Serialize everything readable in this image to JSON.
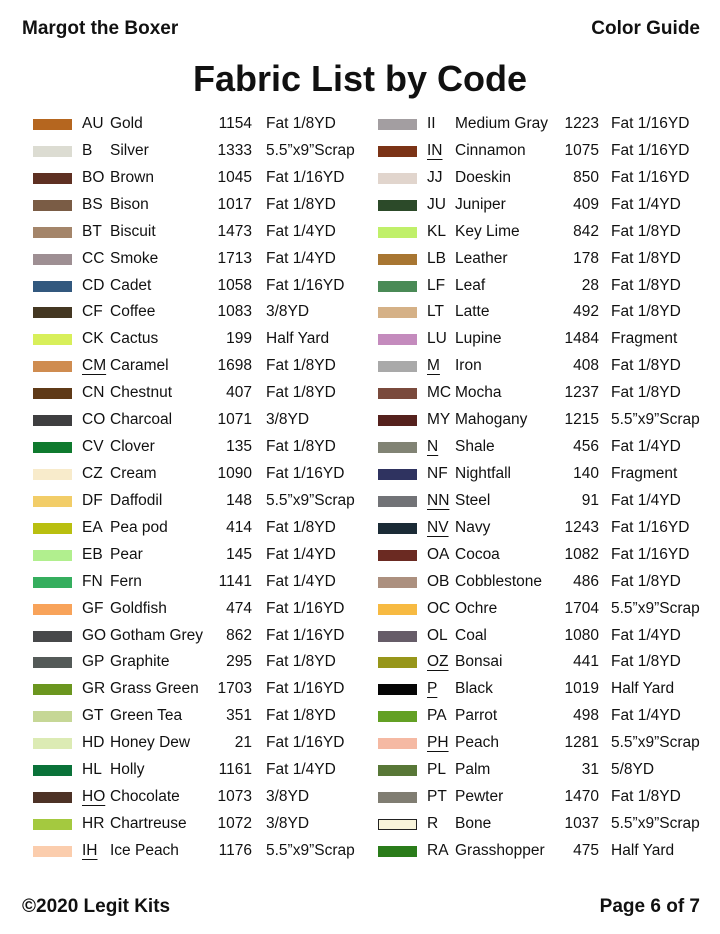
{
  "header": {
    "left": "Margot the Boxer",
    "right": "Color Guide"
  },
  "title": "Fabric List by Code",
  "footer": {
    "left": "©2020 Legit Kits",
    "right": "Page 6 of 7"
  },
  "columns": [
    [
      {
        "code": "AU",
        "name": "Gold",
        "number": "1154",
        "size": "Fat 1/8YD",
        "color": "#b5661f",
        "underline": false
      },
      {
        "code": "B",
        "name": "Silver",
        "number": "1333",
        "size": "5.5”x9”Scrap",
        "color": "#dcdcd2",
        "underline": false
      },
      {
        "code": "BO",
        "name": "Brown",
        "number": "1045",
        "size": "Fat 1/16YD",
        "color": "#5e3022",
        "underline": false
      },
      {
        "code": "BS",
        "name": "Bison",
        "number": "1017",
        "size": "Fat 1/8YD",
        "color": "#7a5c45",
        "underline": false
      },
      {
        "code": "BT",
        "name": "Biscuit",
        "number": "1473",
        "size": "Fat 1/4YD",
        "color": "#a4856a",
        "underline": false
      },
      {
        "code": "CC",
        "name": "Smoke",
        "number": "1713",
        "size": "Fat 1/4YD",
        "color": "#9e8f93",
        "underline": false
      },
      {
        "code": "CD",
        "name": "Cadet",
        "number": "1058",
        "size": "Fat 1/16YD",
        "color": "#32587e",
        "underline": false
      },
      {
        "code": "CF",
        "name": "Coffee",
        "number": "1083",
        "size": "3/8YD",
        "color": "#443722",
        "underline": false
      },
      {
        "code": "CK",
        "name": "Cactus",
        "number": "199",
        "size": "Half Yard",
        "color": "#d8ef5a",
        "underline": false
      },
      {
        "code": "CM",
        "name": "Caramel",
        "number": "1698",
        "size": "Fat 1/8YD",
        "color": "#cf8c50",
        "underline": true
      },
      {
        "code": "CN",
        "name": "Chestnut",
        "number": "407",
        "size": "Fat 1/8YD",
        "color": "#5f3a18",
        "underline": false
      },
      {
        "code": "CO",
        "name": "Charcoal",
        "number": "1071",
        "size": "3/8YD",
        "color": "#3e3e40",
        "underline": false
      },
      {
        "code": "CV",
        "name": "Clover",
        "number": "135",
        "size": "Fat 1/8YD",
        "color": "#0f7a2e",
        "underline": false
      },
      {
        "code": "CZ",
        "name": "Cream",
        "number": "1090",
        "size": "Fat 1/16YD",
        "color": "#f8ebcb",
        "underline": false
      },
      {
        "code": "DF",
        "name": "Daffodil",
        "number": "148",
        "size": "5.5”x9”Scrap",
        "color": "#f2cd68",
        "underline": false
      },
      {
        "code": "EA",
        "name": "Pea pod",
        "number": "414",
        "size": "Fat 1/8YD",
        "color": "#b9bf10",
        "underline": false
      },
      {
        "code": "EB",
        "name": "Pear",
        "number": "145",
        "size": "Fat 1/4YD",
        "color": "#b1ef8e",
        "underline": false
      },
      {
        "code": "FN",
        "name": "Fern",
        "number": "1141",
        "size": "Fat 1/4YD",
        "color": "#35ae5e",
        "underline": false
      },
      {
        "code": "GF",
        "name": "Goldfish",
        "number": "474",
        "size": "Fat 1/16YD",
        "color": "#f8a35a",
        "underline": false
      },
      {
        "code": "GO",
        "name": "Gotham Grey",
        "number": "862",
        "size": "Fat 1/16YD",
        "color": "#47484a",
        "underline": false
      },
      {
        "code": "GP",
        "name": "Graphite",
        "number": "295",
        "size": "Fat 1/8YD",
        "color": "#545a58",
        "underline": false
      },
      {
        "code": "GR",
        "name": "Grass Green",
        "number": "1703",
        "size": "Fat 1/16YD",
        "color": "#6b961f",
        "underline": false
      },
      {
        "code": "GT",
        "name": "Green Tea",
        "number": "351",
        "size": "Fat 1/8YD",
        "color": "#c6d796",
        "underline": false
      },
      {
        "code": "HD",
        "name": "Honey Dew",
        "number": "21",
        "size": "Fat 1/16YD",
        "color": "#dcebb4",
        "underline": false
      },
      {
        "code": "HL",
        "name": "Holly",
        "number": "1161",
        "size": "Fat 1/4YD",
        "color": "#0a7239",
        "underline": false
      },
      {
        "code": "HO",
        "name": "Chocolate",
        "number": "1073",
        "size": "3/8YD",
        "color": "#4d3226",
        "underline": true
      },
      {
        "code": "HR",
        "name": "Chartreuse",
        "number": "1072",
        "size": "3/8YD",
        "color": "#a4c93f",
        "underline": false
      },
      {
        "code": "IH",
        "name": "Ice Peach",
        "number": "1176",
        "size": "5.5”x9”Scrap",
        "color": "#fbcdad",
        "underline": true
      }
    ],
    [
      {
        "code": "II",
        "name": "Medium Gray",
        "number": "1223",
        "size": "Fat 1/16YD",
        "color": "#a39ea1",
        "underline": false
      },
      {
        "code": "IN",
        "name": "Cinnamon",
        "number": "1075",
        "size": "Fat 1/16YD",
        "color": "#7b3316",
        "underline": true
      },
      {
        "code": "JJ",
        "name": "Doeskin",
        "number": "850",
        "size": "Fat 1/16YD",
        "color": "#e1d5cd",
        "underline": false
      },
      {
        "code": "JU",
        "name": "Juniper",
        "number": "409",
        "size": "Fat 1/4YD",
        "color": "#2c4a29",
        "underline": false
      },
      {
        "code": "KL",
        "name": "Key Lime",
        "number": "842",
        "size": "Fat 1/8YD",
        "color": "#c0f06a",
        "underline": false
      },
      {
        "code": "LB",
        "name": "Leather",
        "number": "178",
        "size": "Fat 1/8YD",
        "color": "#a87632",
        "underline": false
      },
      {
        "code": "LF",
        "name": "Leaf",
        "number": "28",
        "size": "Fat 1/8YD",
        "color": "#4a8a56",
        "underline": false
      },
      {
        "code": "LT",
        "name": "Latte",
        "number": "492",
        "size": "Fat 1/8YD",
        "color": "#d5b187",
        "underline": false
      },
      {
        "code": "LU",
        "name": "Lupine",
        "number": "1484",
        "size": "Fragment",
        "color": "#c48bbd",
        "underline": false
      },
      {
        "code": "M",
        "name": "Iron",
        "number": "408",
        "size": "Fat 1/8YD",
        "color": "#a9a9a9",
        "underline": true
      },
      {
        "code": "MC",
        "name": "Mocha",
        "number": "1237",
        "size": "Fat 1/8YD",
        "color": "#7a4a3c",
        "underline": false
      },
      {
        "code": "MY",
        "name": "Mahogany",
        "number": "1215",
        "size": "5.5”x9”Scrap",
        "color": "#55211d",
        "underline": false
      },
      {
        "code": "N",
        "name": "Shale",
        "number": "456",
        "size": "Fat 1/4YD",
        "color": "#818374",
        "underline": true
      },
      {
        "code": "NF",
        "name": "Nightfall",
        "number": "140",
        "size": "Fragment",
        "color": "#2f3360",
        "underline": false
      },
      {
        "code": "NN",
        "name": "Steel",
        "number": "91",
        "size": "Fat 1/4YD",
        "color": "#727377",
        "underline": true
      },
      {
        "code": "NV",
        "name": "Navy",
        "number": "1243",
        "size": "Fat 1/16YD",
        "color": "#1b2b36",
        "underline": true
      },
      {
        "code": "OA",
        "name": "Cocoa",
        "number": "1082",
        "size": "Fat 1/16YD",
        "color": "#6b2a22",
        "underline": false
      },
      {
        "code": "OB",
        "name": "Cobblestone",
        "number": "486",
        "size": "Fat 1/8YD",
        "color": "#ac907f",
        "underline": false
      },
      {
        "code": "OC",
        "name": "Ochre",
        "number": "1704",
        "size": "5.5”x9”Scrap",
        "color": "#f7ba42",
        "underline": false
      },
      {
        "code": "OL",
        "name": "Coal",
        "number": "1080",
        "size": "Fat 1/4YD",
        "color": "#665c68",
        "underline": false
      },
      {
        "code": "OZ",
        "name": "Bonsai",
        "number": "441",
        "size": "Fat 1/8YD",
        "color": "#97961a",
        "underline": true
      },
      {
        "code": "P",
        "name": "Black",
        "number": "1019",
        "size": "Half Yard",
        "color": "#050505",
        "underline": true
      },
      {
        "code": "PA",
        "name": "Parrot",
        "number": "498",
        "size": "Fat 1/4YD",
        "color": "#63a024",
        "underline": false
      },
      {
        "code": "PH",
        "name": "Peach",
        "number": "1281",
        "size": "5.5”x9”Scrap",
        "color": "#f5b9a3",
        "underline": true
      },
      {
        "code": "PL",
        "name": "Palm",
        "number": "31",
        "size": "5/8YD",
        "color": "#587737",
        "underline": false
      },
      {
        "code": "PT",
        "name": "Pewter",
        "number": "1470",
        "size": "Fat 1/8YD",
        "color": "#807d72",
        "underline": false
      },
      {
        "code": "R",
        "name": "Bone",
        "number": "1037",
        "size": "5.5”x9”Scrap",
        "color": "#f8f4da",
        "underline": false,
        "outlined": true
      },
      {
        "code": "RA",
        "name": "Grasshopper",
        "number": "475",
        "size": "Half Yard",
        "color": "#2a7c1a",
        "underline": false
      }
    ]
  ]
}
